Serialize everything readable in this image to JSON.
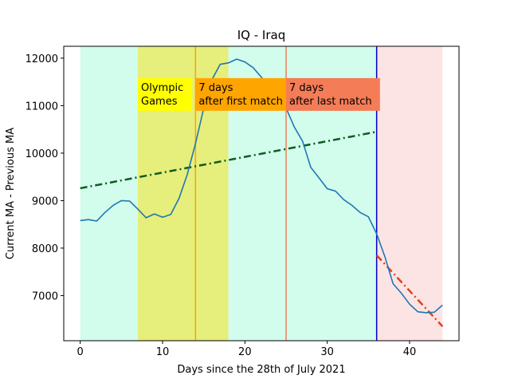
{
  "chart_data": {
    "type": "line",
    "title": "IQ - Iraq",
    "xlabel": "Days since the 28th of July 2021",
    "ylabel": "Current MA - Previous MA",
    "xlim": [
      -2,
      46
    ],
    "ylim": [
      6050,
      12250
    ],
    "xticks": [
      0,
      10,
      20,
      30,
      40
    ],
    "yticks": [
      7000,
      8000,
      9000,
      10000,
      11000,
      12000
    ],
    "grid": false,
    "series": [
      {
        "name": "",
        "color": "#1f77b4",
        "x": [
          0,
          1,
          2,
          3,
          4,
          5,
          6,
          7,
          8,
          9,
          10,
          11,
          12,
          13,
          14,
          15,
          16,
          17,
          18,
          19,
          20,
          21,
          22,
          23,
          24,
          25,
          26,
          27,
          28,
          29,
          30,
          31,
          32,
          33,
          34,
          35,
          36,
          37,
          38,
          39,
          40,
          41,
          42,
          43,
          44
        ],
        "y": [
          8580,
          8600,
          8570,
          8750,
          8900,
          9000,
          8990,
          8820,
          8640,
          8720,
          8650,
          8710,
          9050,
          9550,
          10200,
          10950,
          11550,
          11870,
          11900,
          11980,
          11920,
          11800,
          11600,
          11380,
          11180,
          10950,
          10550,
          10250,
          9700,
          9480,
          9250,
          9200,
          9020,
          8900,
          8750,
          8660,
          8300,
          7820,
          7250,
          7050,
          6820,
          6660,
          6640,
          6650,
          6800
        ]
      }
    ],
    "trend_lines": [
      {
        "color": "#0d5c1f",
        "x": [
          0,
          36
        ],
        "y": [
          9260,
          10450
        ]
      },
      {
        "color": "#e0401c",
        "x": [
          36,
          44
        ],
        "y": [
          7850,
          6350
        ]
      }
    ],
    "bands": [
      {
        "x0": 0,
        "x1": 7,
        "color": "#d2fcec"
      },
      {
        "x0": 7,
        "x1": 18,
        "color": "#e6ee7c"
      },
      {
        "x0": 18,
        "x1": 36,
        "color": "#d2fcec"
      },
      {
        "x0": 36,
        "x1": 44,
        "color": "#fde4e4"
      }
    ],
    "vlines": [
      {
        "x": 14,
        "color": "#ffa500"
      },
      {
        "x": 25,
        "color": "#f47c56"
      },
      {
        "x": 36,
        "color": "#0000cc"
      }
    ],
    "annotations": [
      {
        "x": 7,
        "y": 11580,
        "lines": [
          "Olympic",
          "Games"
        ],
        "bg": "#ffff00",
        "box_until_x": 13.6
      },
      {
        "x": 14,
        "y": 11580,
        "lines": [
          "7 days",
          "after first match"
        ],
        "bg": "#ffa500",
        "box_until_x": 25.4
      },
      {
        "x": 25,
        "y": 11580,
        "lines": [
          "7 days",
          "after last match"
        ],
        "bg": "#f47c56",
        "box_until_x": 36.4
      }
    ]
  }
}
